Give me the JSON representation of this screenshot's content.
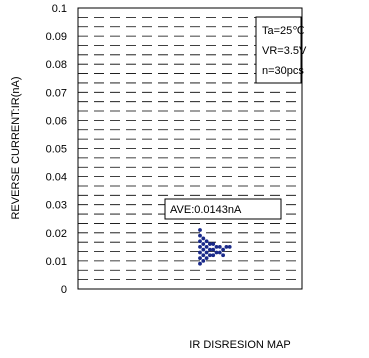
{
  "chart_data": {
    "type": "scatter",
    "title": "",
    "xlabel": "",
    "ylabel": "REVERSE CURRENT:IR(nA)",
    "caption": "IR DISRESION MAP",
    "ylim": [
      0,
      0.1
    ],
    "y_ticks": [
      "0",
      "0.01",
      "0.02",
      "0.03",
      "0.04",
      "0.05",
      "0.06",
      "0.07",
      "0.08",
      "0.09",
      "0.1"
    ],
    "grid": "dashed horizontal",
    "conditions": [
      "Ta=25℃",
      "VR=3.5V",
      "n=30pcs"
    ],
    "conditions_position": "top-right",
    "average_label": "AVE:0.0143nA",
    "marker_color": "#1a2a8a",
    "points": [
      {
        "x": 0,
        "y": 0.021
      },
      {
        "x": 0,
        "y": 0.019
      },
      {
        "x": 0,
        "y": 0.017
      },
      {
        "x": 0,
        "y": 0.015
      },
      {
        "x": 0,
        "y": 0.013
      },
      {
        "x": 0,
        "y": 0.011
      },
      {
        "x": 0,
        "y": 0.009
      },
      {
        "x": 1,
        "y": 0.018
      },
      {
        "x": 1,
        "y": 0.016
      },
      {
        "x": 1,
        "y": 0.014
      },
      {
        "x": 1,
        "y": 0.012
      },
      {
        "x": 1,
        "y": 0.01
      },
      {
        "x": 2,
        "y": 0.017
      },
      {
        "x": 2,
        "y": 0.015
      },
      {
        "x": 2,
        "y": 0.013
      },
      {
        "x": 2,
        "y": 0.011
      },
      {
        "x": 3,
        "y": 0.016
      },
      {
        "x": 3,
        "y": 0.014
      },
      {
        "x": 3,
        "y": 0.012
      },
      {
        "x": 4,
        "y": 0.016
      },
      {
        "x": 4,
        "y": 0.014
      },
      {
        "x": 4,
        "y": 0.012
      },
      {
        "x": 5,
        "y": 0.015
      },
      {
        "x": 5,
        "y": 0.013
      },
      {
        "x": 6,
        "y": 0.015
      },
      {
        "x": 6,
        "y": 0.013
      },
      {
        "x": 7,
        "y": 0.014
      },
      {
        "x": 7,
        "y": 0.012
      },
      {
        "x": 8,
        "y": 0.015
      },
      {
        "x": 9,
        "y": 0.015
      }
    ]
  }
}
